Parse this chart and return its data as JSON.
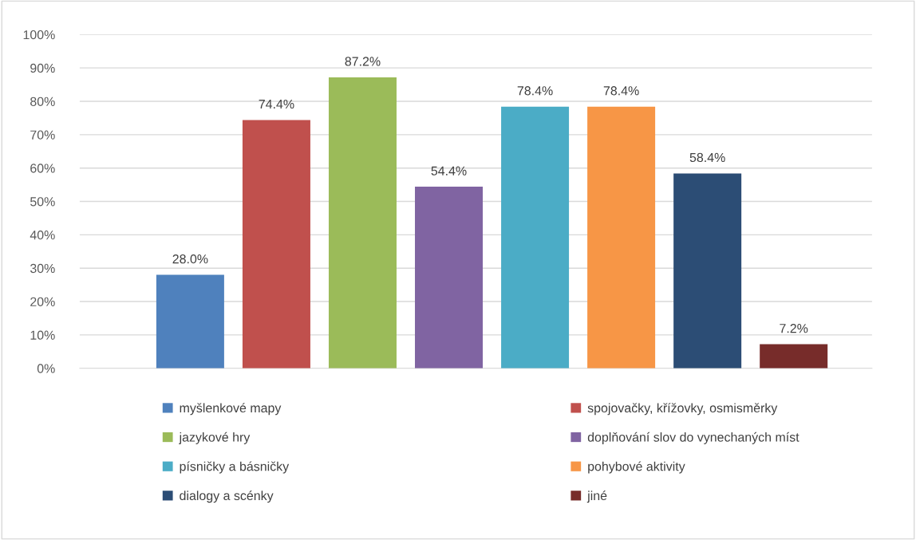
{
  "chart_data": {
    "type": "bar",
    "categories": [
      null
    ],
    "series": [
      {
        "name": "myšlenkové mapy",
        "color": "#4f81bd",
        "values": [
          28.0
        ],
        "value_labels": [
          "28.0%"
        ]
      },
      {
        "name": "spojovačky, křížovky, osmisměrky",
        "color": "#c0504d",
        "values": [
          74.4
        ],
        "value_labels": [
          "74.4%"
        ]
      },
      {
        "name": "jazykové hry",
        "color": "#9bbb59",
        "values": [
          87.2
        ],
        "value_labels": [
          "87.2%"
        ]
      },
      {
        "name": "doplňování slov do vynechaných míst",
        "color": "#8064a2",
        "values": [
          54.4
        ],
        "value_labels": [
          "54.4%"
        ]
      },
      {
        "name": "písničky a básničky",
        "color": "#4bacc6",
        "values": [
          78.4
        ],
        "value_labels": [
          "78.4%"
        ]
      },
      {
        "name": "pohybové aktivity",
        "color": "#f79646",
        "values": [
          78.4
        ],
        "value_labels": [
          "78.4%"
        ]
      },
      {
        "name": "dialogy a scénky",
        "color": "#2c4d75",
        "values": [
          58.4
        ],
        "value_labels": [
          "58.4%"
        ]
      },
      {
        "name": "jiné",
        "color": "#772c2a",
        "values": [
          7.2
        ],
        "value_labels": [
          "7.2%"
        ]
      }
    ],
    "ylim": [
      0,
      100
    ],
    "yticks": [
      {
        "value": 0,
        "label": "0%"
      },
      {
        "value": 10,
        "label": "10%"
      },
      {
        "value": 20,
        "label": "20%"
      },
      {
        "value": 30,
        "label": "30%"
      },
      {
        "value": 40,
        "label": "40%"
      },
      {
        "value": 50,
        "label": "50%"
      },
      {
        "value": 60,
        "label": "60%"
      },
      {
        "value": 70,
        "label": "70%"
      },
      {
        "value": 80,
        "label": "80%"
      },
      {
        "value": 90,
        "label": "90%"
      },
      {
        "value": 100,
        "label": "100%"
      }
    ],
    "grid": "y",
    "legend": "bottom"
  }
}
